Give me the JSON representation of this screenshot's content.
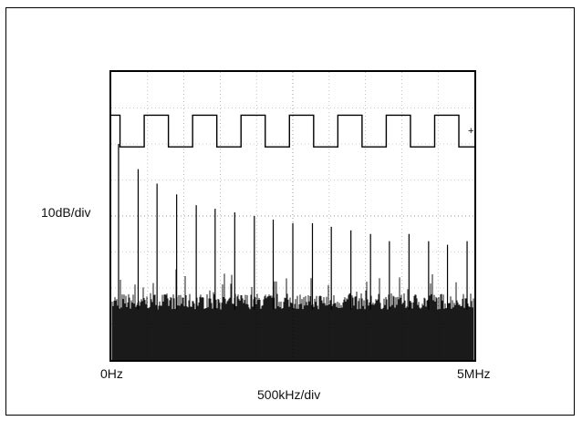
{
  "chart_data": {
    "type": "line",
    "title": "",
    "xlabel": "500kHz/div",
    "ylabel": "10dB/div",
    "x_tick_labels": [
      "0Hz",
      "5MHz"
    ],
    "xlim": [
      0,
      5
    ],
    "x_unit": "MHz",
    "grid": true,
    "grid_divisions": {
      "x": 10,
      "y": 8
    },
    "series": [
      {
        "trace": "time-domain square wave",
        "cycles_visible": 7.5
      },
      {
        "trace": "frequency spectrum",
        "peak_frequencies_mhz": [
          0.1,
          0.37,
          0.63,
          0.9,
          1.17,
          1.43,
          1.7,
          1.97,
          2.23,
          2.5,
          2.77,
          3.03,
          3.3,
          3.57,
          3.83,
          4.1,
          4.37,
          4.63,
          4.9
        ],
        "peak_levels_div": [
          6.0,
          5.3,
          4.9,
          4.6,
          4.3,
          4.2,
          4.1,
          4.0,
          3.9,
          3.8,
          3.8,
          3.7,
          3.6,
          3.5,
          3.3,
          3.5,
          3.3,
          3.2,
          3.3
        ],
        "noise_floor_div": 1.4
      }
    ]
  },
  "colors": {
    "background": "#ffffff",
    "trace": "#000000",
    "grid": "#9a9a9a"
  }
}
